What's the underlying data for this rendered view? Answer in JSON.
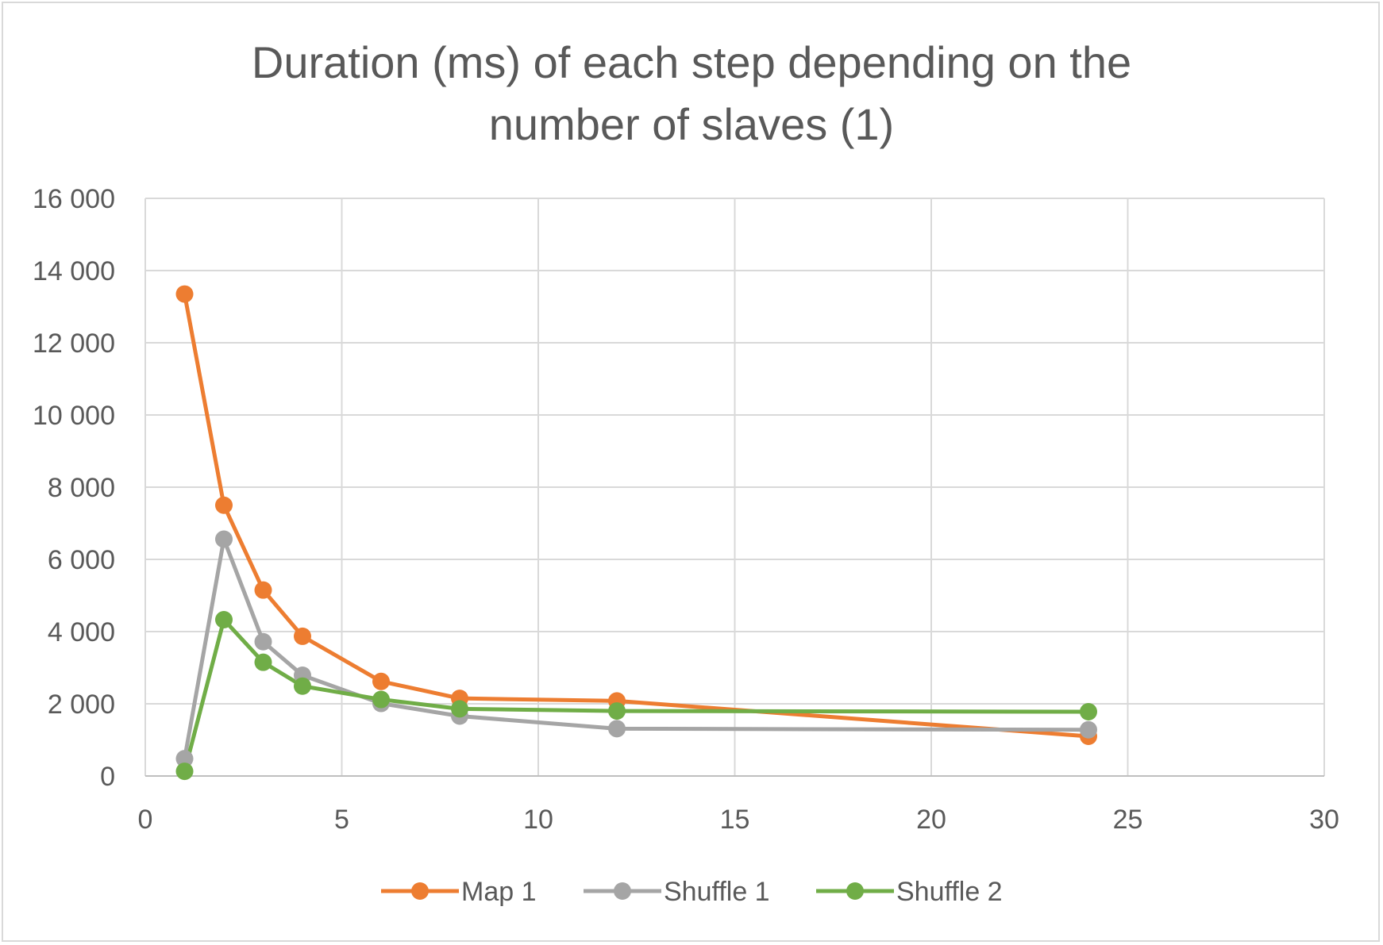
{
  "chart_data": {
    "type": "scatter",
    "title_lines": [
      "Duration (ms) of each step depending on the",
      "number of slaves (1)"
    ],
    "xlim": [
      0,
      30
    ],
    "ylim": [
      0,
      16000
    ],
    "x_ticks": [
      0,
      5,
      10,
      15,
      20,
      25,
      30
    ],
    "y_ticks": [
      0,
      2000,
      4000,
      6000,
      8000,
      10000,
      12000,
      14000,
      16000
    ],
    "x_tick_labels": [
      "0",
      "5",
      "10",
      "15",
      "20",
      "25",
      "30"
    ],
    "y_tick_labels": [
      "0",
      "2 000",
      "4 000",
      "6 000",
      "8 000",
      "10 000",
      "12 000",
      "14 000",
      "16 000"
    ],
    "grid": true,
    "legend_position": "bottom",
    "x": [
      1,
      2,
      3,
      4,
      6,
      8,
      12,
      24
    ],
    "series": [
      {
        "name": "Map 1",
        "color": "#ed7d31",
        "values": [
          13350,
          7500,
          5150,
          3870,
          2620,
          2150,
          2080,
          1100
        ]
      },
      {
        "name": "Shuffle 1",
        "color": "#a5a5a5",
        "values": [
          480,
          6560,
          3720,
          2790,
          2010,
          1660,
          1310,
          1280
        ]
      },
      {
        "name": "Shuffle 2",
        "color": "#70ad47",
        "values": [
          130,
          4330,
          3150,
          2490,
          2120,
          1860,
          1800,
          1780
        ]
      }
    ]
  }
}
